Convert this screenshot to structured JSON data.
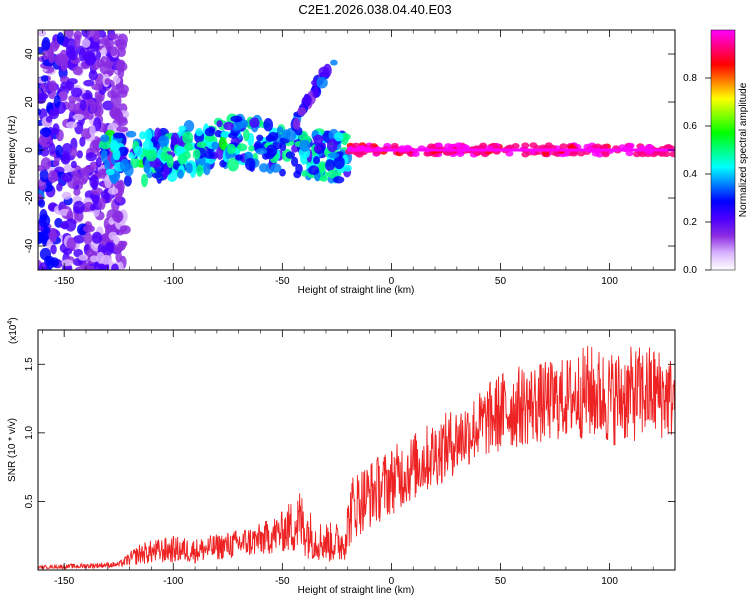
{
  "title": "C2E1.2026.038.04.40.E03",
  "chart_data": [
    {
      "type": "heatmap",
      "xlabel": "Height of straight line (km)",
      "ylabel": "Frequency (Hz)",
      "xlim": [
        -162,
        130
      ],
      "ylim": [
        -50,
        50
      ],
      "xticks": [
        "-150",
        "-100",
        "-50",
        "0",
        "50",
        "100"
      ],
      "xtick_values": [
        -150,
        -100,
        -50,
        0,
        50,
        100
      ],
      "yticks": [
        "-40",
        "-20",
        "0",
        "20",
        "40"
      ],
      "ytick_values": [
        -40,
        -20,
        0,
        20,
        40
      ],
      "colorbar": {
        "label": "Normalized spectral amplitude",
        "ticks": [
          "0.0",
          "0.2",
          "0.4",
          "0.6",
          "0.8"
        ],
        "tick_values": [
          0.0,
          0.2,
          0.4,
          0.6,
          0.8
        ],
        "range": [
          0,
          1
        ],
        "colors": [
          "#ffffff",
          "#d9b3ff",
          "#8a2be2",
          "#4b00ff",
          "#0000ff",
          "#0080ff",
          "#00ffff",
          "#00ff80",
          "#00ff00",
          "#80ff00",
          "#ffff00",
          "#ff8000",
          "#ff0000",
          "#ff0080",
          "#ff00ff"
        ]
      },
      "regions": [
        {
          "name": "broadband noise",
          "x": [
            -162,
            -122
          ],
          "f": [
            -50,
            50
          ],
          "amplitude": 0.15
        },
        {
          "name": "scattered signal",
          "x": [
            -132,
            -20
          ],
          "f": [
            -10,
            10
          ],
          "amplitude": 0.45
        },
        {
          "name": "rising branch",
          "x": [
            -45,
            -25
          ],
          "f": [
            10,
            40
          ],
          "amplitude": 0.3
        },
        {
          "name": "strong carrier line",
          "x": [
            -20,
            130
          ],
          "f": [
            -2,
            2
          ],
          "amplitude": 0.95
        }
      ]
    },
    {
      "type": "line",
      "xlabel": "Height of straight line (km)",
      "ylabel": "SNR (10 * v/v)",
      "multiplier": "(x10",
      "multiplier_exp": "4",
      "multiplier_close": ")",
      "xlim": [
        -162,
        130
      ],
      "ylim": [
        0,
        1.75
      ],
      "xticks": [
        "-150",
        "-100",
        "-50",
        "0",
        "50",
        "100"
      ],
      "xtick_values": [
        -150,
        -100,
        -50,
        0,
        50,
        100
      ],
      "yticks": [
        "0.5",
        "1.0",
        "1.5"
      ],
      "ytick_values": [
        0.5,
        1.0,
        1.5
      ],
      "color": "#ee2222",
      "series": [
        {
          "name": "SNR",
          "x": [
            -162,
            -140,
            -125,
            -115,
            -100,
            -90,
            -75,
            -60,
            -50,
            -42,
            -35,
            -28,
            -22,
            -18,
            -15,
            -10,
            -5,
            0,
            10,
            20,
            30,
            40,
            50,
            60,
            70,
            80,
            90,
            100,
            110,
            120,
            130
          ],
          "y": [
            0.02,
            0.03,
            0.04,
            0.12,
            0.15,
            0.14,
            0.18,
            0.22,
            0.28,
            0.35,
            0.22,
            0.2,
            0.2,
            0.45,
            0.5,
            0.55,
            0.6,
            0.65,
            0.75,
            0.85,
            0.95,
            1.05,
            1.15,
            1.2,
            1.22,
            1.25,
            1.3,
            1.25,
            1.28,
            1.3,
            1.25
          ],
          "spread": [
            0.01,
            0.02,
            0.02,
            0.08,
            0.1,
            0.09,
            0.1,
            0.12,
            0.15,
            0.25,
            0.15,
            0.15,
            0.15,
            0.25,
            0.25,
            0.25,
            0.25,
            0.25,
            0.25,
            0.25,
            0.25,
            0.25,
            0.3,
            0.3,
            0.3,
            0.3,
            0.35,
            0.35,
            0.35,
            0.35,
            0.3
          ]
        }
      ]
    }
  ]
}
